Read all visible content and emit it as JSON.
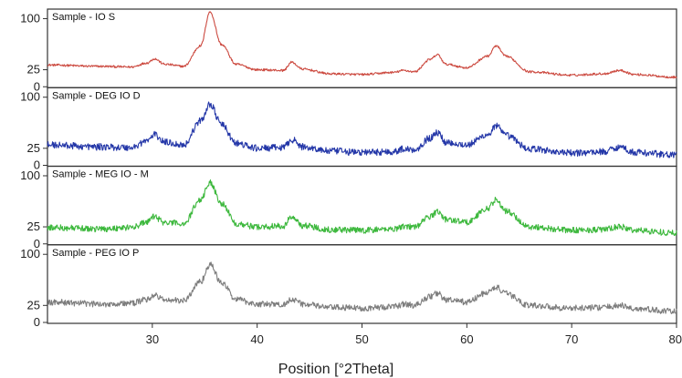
{
  "chart_data": {
    "type": "line",
    "xlabel": "Position [°2Theta]",
    "xlim": [
      20,
      80
    ],
    "x_ticks": [
      30,
      40,
      50,
      60,
      70,
      80
    ],
    "x_tick_labels": [
      "30",
      "40",
      "50",
      "60",
      "70",
      "80"
    ],
    "y_ticks": [
      0,
      25,
      100
    ],
    "y_tick_labels": [
      "0",
      "25",
      "100"
    ],
    "ylim": [
      0,
      110
    ],
    "grid": false,
    "legend": "none",
    "series": [
      {
        "name": "Sample - IO S",
        "color": "#cc4a40",
        "noise": 1.6,
        "x": [
          20,
          25,
          28,
          29.5,
          30.2,
          31.2,
          33,
          34.6,
          35.5,
          36.6,
          38,
          40,
          42.5,
          43.3,
          44.3,
          47,
          50,
          53,
          54,
          55,
          56.5,
          57.2,
          58,
          60,
          62,
          62.8,
          63.7,
          66,
          70,
          73,
          74.6,
          76,
          80
        ],
        "values": [
          32,
          30,
          29,
          35,
          41,
          33,
          30,
          60,
          110,
          62,
          33,
          25,
          24,
          36,
          26,
          19,
          18,
          21,
          24,
          22,
          40,
          47,
          33,
          28,
          45,
          60,
          45,
          22,
          17,
          19,
          24,
          18,
          14
        ]
      },
      {
        "name": "Sample - DEG IO D",
        "color": "#2437a8",
        "noise": 5.0,
        "x": [
          20,
          25,
          28,
          29.5,
          30.2,
          31.2,
          33,
          34.6,
          35.5,
          36.6,
          38,
          40,
          42.5,
          43.3,
          44.3,
          47,
          50,
          53,
          54,
          55,
          56.5,
          57.2,
          58,
          60,
          62,
          62.8,
          63.7,
          66,
          70,
          73,
          74.6,
          76,
          80
        ],
        "values": [
          30,
          27,
          26,
          36,
          45,
          34,
          30,
          65,
          90,
          60,
          32,
          25,
          26,
          38,
          27,
          21,
          19,
          20,
          24,
          23,
          40,
          48,
          34,
          30,
          45,
          58,
          44,
          24,
          18,
          20,
          27,
          19,
          15
        ]
      },
      {
        "name": "Sample - MEG IO - M",
        "color": "#3db83d",
        "noise": 4.5,
        "x": [
          20,
          25,
          28,
          29.5,
          30.2,
          31.2,
          33,
          34.6,
          35.5,
          36.6,
          38,
          40,
          42.5,
          43.3,
          44.3,
          47,
          50,
          53,
          54,
          55,
          56.5,
          57.2,
          58,
          60,
          62,
          62.8,
          63.7,
          66,
          70,
          73,
          74.6,
          76,
          80
        ],
        "values": [
          24,
          22,
          24,
          32,
          40,
          31,
          30,
          65,
          90,
          60,
          30,
          25,
          26,
          40,
          27,
          21,
          20,
          22,
          26,
          25,
          40,
          48,
          36,
          32,
          52,
          65,
          48,
          25,
          20,
          21,
          25,
          20,
          16
        ]
      },
      {
        "name": "Sample - PEG IO P",
        "color": "#7d7d7d",
        "noise": 4.5,
        "x": [
          20,
          25,
          28,
          29.5,
          30.2,
          31.2,
          33,
          34.6,
          35.5,
          36.6,
          38,
          40,
          42.5,
          43.3,
          44.3,
          47,
          50,
          53,
          54,
          55,
          56.5,
          57.2,
          58,
          60,
          62,
          62.8,
          63.7,
          66,
          70,
          73,
          74.6,
          76,
          80
        ],
        "values": [
          30,
          27,
          28,
          34,
          40,
          33,
          32,
          60,
          85,
          58,
          34,
          27,
          26,
          35,
          27,
          22,
          21,
          23,
          27,
          25,
          38,
          43,
          33,
          30,
          44,
          52,
          42,
          25,
          21,
          22,
          25,
          20,
          16
        ]
      }
    ]
  }
}
